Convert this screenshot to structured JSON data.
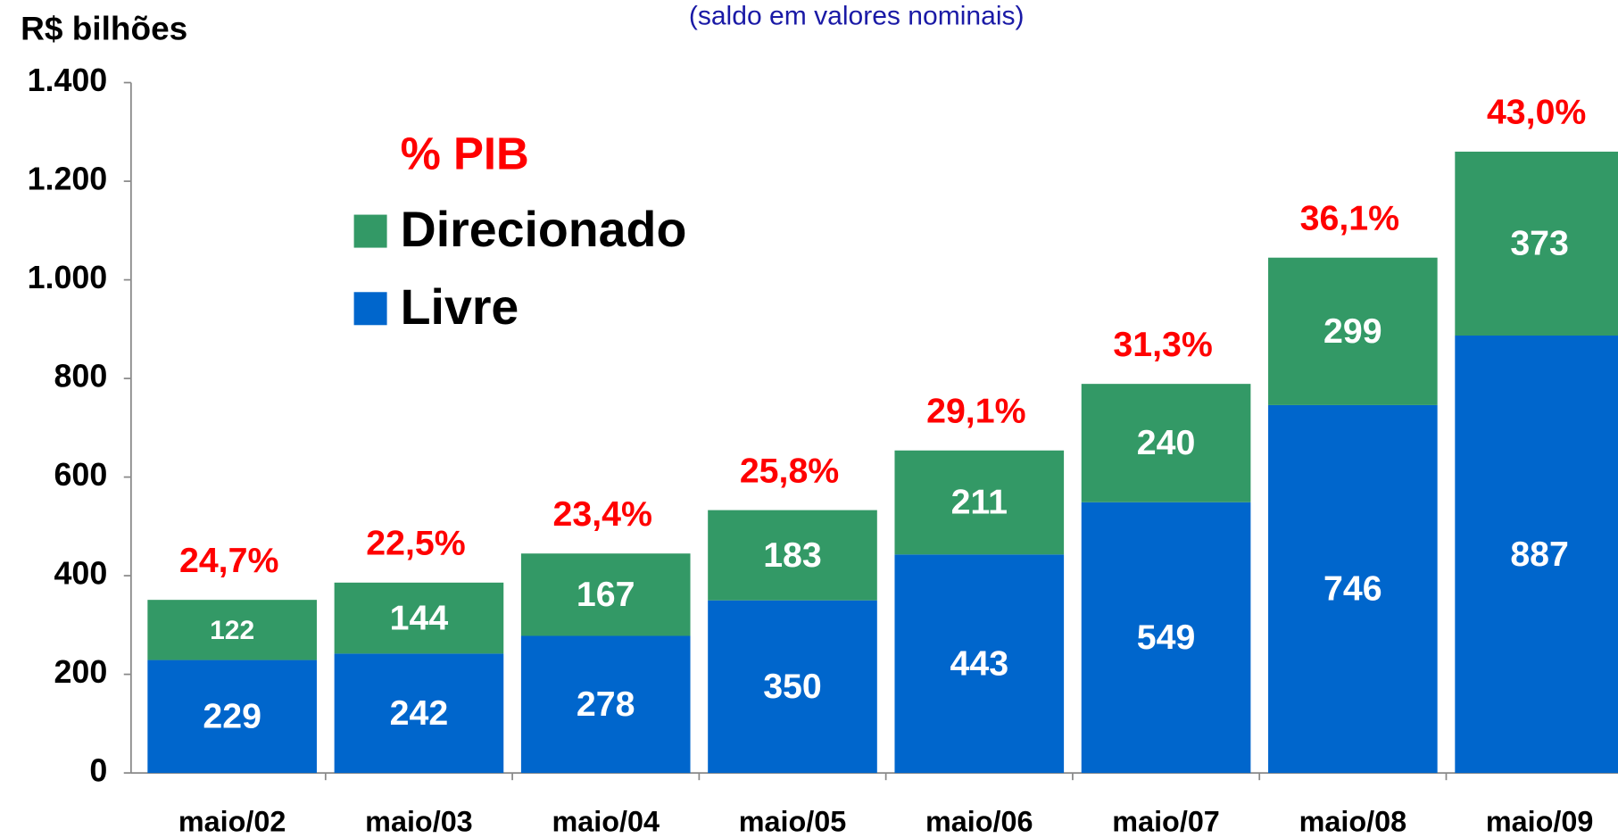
{
  "chart_data": {
    "type": "stacked_bar",
    "subtitle": "(saldo em valores nominais)",
    "y_axis_label": "R$ bilhões",
    "categories": [
      "maio/02",
      "maio/03",
      "maio/04",
      "maio/05",
      "maio/06",
      "maio/07",
      "maio/08",
      "maio/09"
    ],
    "series": [
      {
        "name": "Livre",
        "color": "#0066cc",
        "values": [
          229,
          242,
          278,
          350,
          443,
          549,
          746,
          887
        ]
      },
      {
        "name": "Direcionado",
        "color": "#339966",
        "values": [
          122,
          144,
          167,
          183,
          211,
          240,
          299,
          373
        ]
      }
    ],
    "pib_share": {
      "name": "% PIB",
      "color": "#ff0000",
      "values": [
        24.7,
        22.5,
        23.4,
        25.8,
        29.1,
        31.3,
        36.1,
        43.0
      ],
      "value_labels": [
        "24,7%",
        "22,5%",
        "23,4%",
        "25,8%",
        "29,1%",
        "31,3%",
        "36,1%",
        "43,0%"
      ]
    },
    "ylim": [
      0,
      1400
    ],
    "yticks": [
      0,
      200,
      400,
      600,
      800,
      {
        "value": 1000,
        "label": "1.000"
      },
      {
        "value": 1200,
        "label": "1.200"
      },
      {
        "value": 1400,
        "label": "1.400"
      }
    ]
  }
}
